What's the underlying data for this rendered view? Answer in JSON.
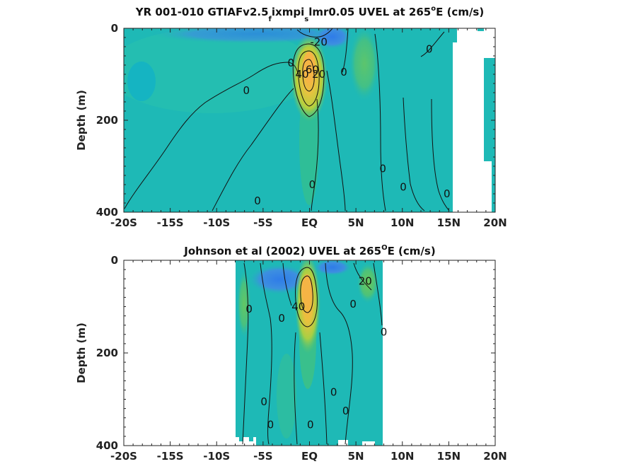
{
  "chart_data": [
    {
      "type": "heatmap",
      "title_parts": [
        "YR 001-010 GTIAFv2.5",
        "f",
        "ixmpi",
        "s",
        "lmr0.05 UVEL at 265",
        "o",
        "E (cm/s)"
      ],
      "xlabel": "",
      "ylabel": "Depth (m)",
      "x_ticks": [
        "-20S",
        "-15S",
        "-10S",
        "-5S",
        "EQ",
        "5N",
        "10N",
        "15N",
        "20N"
      ],
      "x_tick_values": [
        -20,
        -15,
        -10,
        -5,
        0,
        5,
        10,
        15,
        20
      ],
      "xlim": [
        -20,
        20
      ],
      "y_ticks": [
        "0",
        "200",
        "400"
      ],
      "y_tick_values": [
        0,
        200,
        400
      ],
      "ylim": [
        0,
        400
      ],
      "y_reversed": true,
      "data_extent_lat": [
        -20,
        20
      ],
      "core": {
        "lat": 0.2,
        "depth": 80,
        "max_speed": 60
      },
      "contour_labels": [
        {
          "text": "-20",
          "lat": 1.0,
          "depth": 30
        },
        {
          "text": "0",
          "lat": -2.0,
          "depth": 75
        },
        {
          "text": "0",
          "lat": -6.8,
          "depth": 135
        },
        {
          "text": "40",
          "lat": -0.8,
          "depth": 100
        },
        {
          "text": "60",
          "lat": 0.3,
          "depth": 90
        },
        {
          "text": "20",
          "lat": 1.0,
          "depth": 100
        },
        {
          "text": "0",
          "lat": 3.7,
          "depth": 95
        },
        {
          "text": "0",
          "lat": 12.9,
          "depth": 45
        },
        {
          "text": "0",
          "lat": 0.3,
          "depth": 340
        },
        {
          "text": "0",
          "lat": 7.9,
          "depth": 305
        },
        {
          "text": "0",
          "lat": 10.1,
          "depth": 345
        },
        {
          "text": "0",
          "lat": 14.8,
          "depth": 360
        },
        {
          "text": "0",
          "lat": -5.6,
          "depth": 375
        }
      ],
      "colors": {
        "background": "#1eb9b6",
        "core": "#f5b445",
        "negative": "#2f7ce8",
        "mask": "#ffffff"
      }
    },
    {
      "type": "heatmap",
      "title_parts": [
        "Johnson et al (2002) UVEL at 265",
        "O",
        "E (cm/s)"
      ],
      "xlabel": "",
      "ylabel": "Depth (m)",
      "x_ticks": [
        "-20S",
        "-15S",
        "-10S",
        "-5S",
        "EQ",
        "5N",
        "10N",
        "15N",
        "20N"
      ],
      "x_tick_values": [
        -20,
        -15,
        -10,
        -5,
        0,
        5,
        10,
        15,
        20
      ],
      "xlim": [
        -20,
        20
      ],
      "y_ticks": [
        "0",
        "200",
        "400"
      ],
      "y_tick_values": [
        0,
        200,
        400
      ],
      "ylim": [
        0,
        400
      ],
      "y_reversed": true,
      "data_extent_lat": [
        -8,
        8
      ],
      "core": {
        "lat": 0.0,
        "depth": 70,
        "max_speed": 60
      },
      "contour_labels": [
        {
          "text": "0",
          "lat": -6.5,
          "depth": 105
        },
        {
          "text": "0",
          "lat": -3.0,
          "depth": 125
        },
        {
          "text": "40",
          "lat": -1.2,
          "depth": 100
        },
        {
          "text": "0",
          "lat": 4.7,
          "depth": 95
        },
        {
          "text": "20",
          "lat": 6.0,
          "depth": 45
        },
        {
          "text": "0",
          "lat": 8.0,
          "depth": 155
        },
        {
          "text": "0",
          "lat": 2.6,
          "depth": 285
        },
        {
          "text": "0",
          "lat": 3.9,
          "depth": 325
        },
        {
          "text": "0",
          "lat": -4.9,
          "depth": 305
        },
        {
          "text": "0",
          "lat": -4.2,
          "depth": 355
        },
        {
          "text": "0",
          "lat": 0.1,
          "depth": 355
        }
      ],
      "colors": {
        "background": "#1eb9b6",
        "core": "#f5b445",
        "negative": "#2f7ce8",
        "mask": "#ffffff"
      }
    }
  ]
}
